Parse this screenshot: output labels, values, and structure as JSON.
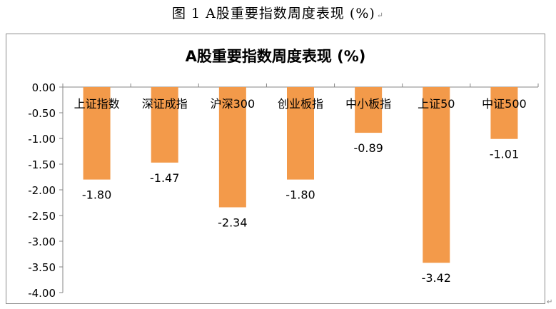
{
  "caption": {
    "text": "图 1 A股重要指数周度表现 (%)",
    "para_mark": "↵"
  },
  "end_mark": "↵",
  "chart_data": {
    "type": "bar",
    "title": "A股重要指数周度表现 (%)",
    "categories": [
      "上证指数",
      "深证成指",
      "沪深300",
      "创业板指",
      "中小板指",
      "上证50",
      "中证500"
    ],
    "values": [
      -1.8,
      -1.47,
      -2.34,
      -1.8,
      -0.89,
      -3.42,
      -1.01
    ],
    "value_labels": [
      "-1.80",
      "-1.47",
      "-2.34",
      "-1.80",
      "-0.89",
      "-3.42",
      "-1.01"
    ],
    "ylim": [
      -4.0,
      0.0
    ],
    "yticks": [
      0.0,
      -0.5,
      -1.0,
      -1.5,
      -2.0,
      -2.5,
      -3.0,
      -3.5,
      -4.0
    ],
    "ytick_labels": [
      "0.00",
      "-0.50",
      "-1.00",
      "-1.50",
      "-2.00",
      "-2.50",
      "-3.00",
      "-3.50",
      "-4.00"
    ],
    "grid": false,
    "legend": "none",
    "xlabel": "",
    "ylabel": "",
    "colors": {
      "bar": "#F39A4A",
      "axis": "#868686",
      "frame": "#8c8c8c",
      "text": "#000000"
    }
  }
}
